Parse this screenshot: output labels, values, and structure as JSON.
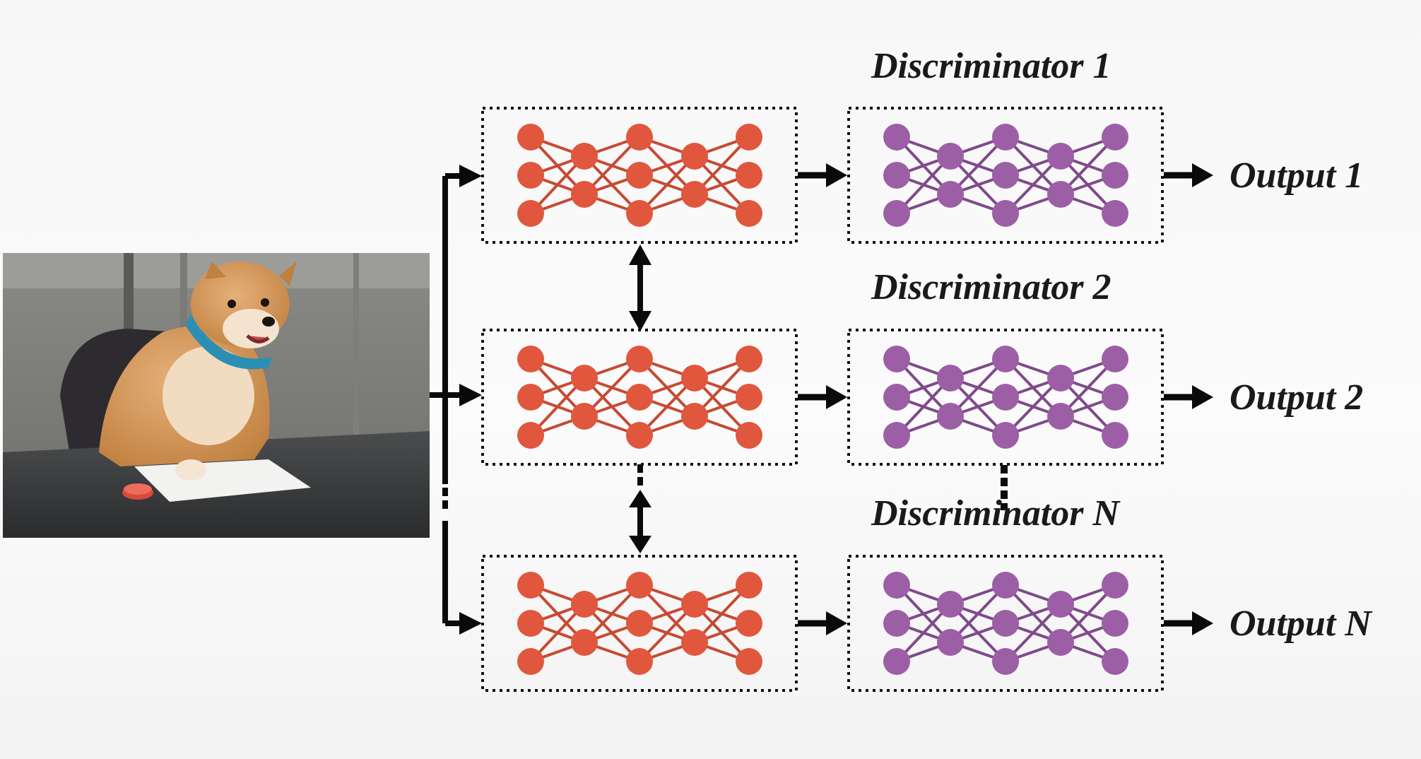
{
  "diagram": {
    "photo": {
      "subject": "shiba-inu-dog-at-desk"
    },
    "discriminators": [
      {
        "title": "Discriminator 1",
        "output": "Output 1"
      },
      {
        "title": "Discriminator 2",
        "output": "Output 2"
      },
      {
        "title": "Discriminator N",
        "output": "Output N"
      }
    ],
    "colors": {
      "generator_node": "#e0573d",
      "generator_edge": "#c64a34",
      "discriminator_node": "#9c5fa6",
      "discriminator_edge": "#7f4a8a",
      "arrow": "#0a0a0a",
      "text": "#1a1a1a"
    }
  }
}
